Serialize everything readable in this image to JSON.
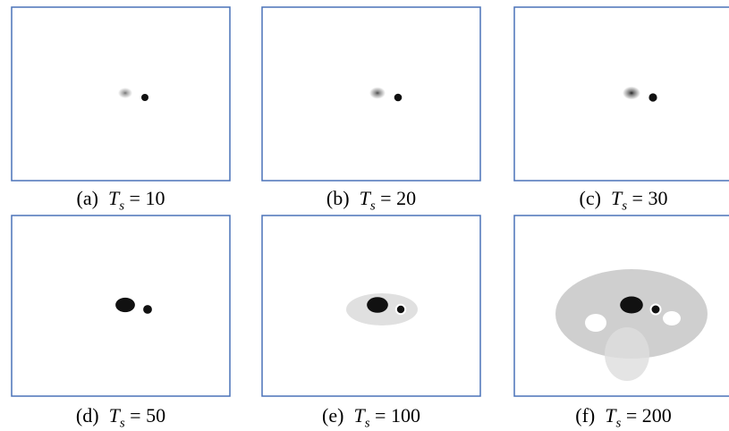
{
  "figure": {
    "symbol": "T",
    "subscript": "s",
    "relation": "=",
    "panels": [
      {
        "label": "(a)",
        "value": "10"
      },
      {
        "label": "(b)",
        "value": "20"
      },
      {
        "label": "(c)",
        "value": "30"
      },
      {
        "label": "(d)",
        "value": "50"
      },
      {
        "label": "(e)",
        "value": "100"
      },
      {
        "label": "(f)",
        "value": "200"
      }
    ]
  }
}
